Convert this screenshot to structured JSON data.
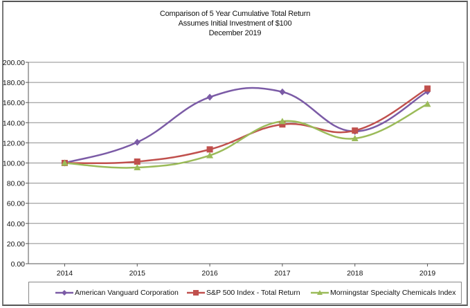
{
  "chart_data": {
    "type": "line",
    "title": "Comparison of 5 Year Cumulative Total Return",
    "subtitle_lines": [
      "Assumes Initial Investment of $100",
      "December 2019"
    ],
    "xlabel": "",
    "ylabel": "",
    "categories": [
      "2014",
      "2015",
      "2016",
      "2017",
      "2018",
      "2019"
    ],
    "ylim": [
      0,
      200
    ],
    "yticks": [
      0,
      20,
      40,
      60,
      80,
      100,
      120,
      140,
      160,
      180,
      200
    ],
    "ytick_labels": [
      "0.00",
      "20.00",
      "40.00",
      "60.00",
      "80.00",
      "100.00",
      "120.00",
      "140.00",
      "160.00",
      "180.00",
      "200.00"
    ],
    "grid": true,
    "smooth": true,
    "legend_position": "bottom",
    "series": [
      {
        "name": "American Vanguard Corporation",
        "color": "#7b5ba6",
        "marker": "diamond",
        "values": [
          100.0,
          120.6,
          165.4,
          170.6,
          131.4,
          171.0
        ]
      },
      {
        "name": "S&P 500 Index - Total Return",
        "color": "#c0504d",
        "marker": "square",
        "values": [
          100.0,
          101.4,
          113.5,
          138.3,
          132.2,
          173.9
        ]
      },
      {
        "name": "Morningstar Specialty Chemicals Index",
        "color": "#9bbb59",
        "marker": "triangle",
        "values": [
          100.0,
          95.5,
          107.5,
          141.4,
          124.4,
          158.5
        ]
      }
    ]
  }
}
